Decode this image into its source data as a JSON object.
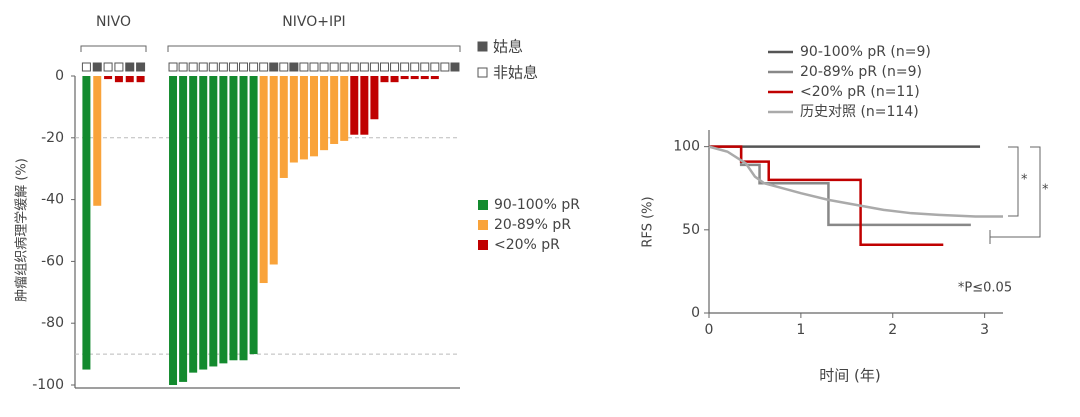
{
  "chart_data": [
    {
      "type": "waterfall",
      "y_label": "肿瘤组织病理学缓解 (%)",
      "ylim": [
        0,
        -100
      ],
      "yticks": [
        0,
        -20,
        -40,
        -60,
        -80,
        -100
      ],
      "ref_lines": [
        -20,
        -90
      ],
      "groups": [
        {
          "name": "NIVO",
          "values": [
            -95,
            -42,
            -1,
            -2,
            -2,
            -2
          ],
          "colors": [
            "#138a2e",
            "#f9a33a",
            "#c00000",
            "#c00000",
            "#c00000",
            "#c00000"
          ],
          "palliative": [
            false,
            true,
            false,
            false,
            true,
            true
          ]
        },
        {
          "name": "NIVO+IPI",
          "values": [
            -100,
            -99,
            -96,
            -95,
            -94,
            -93,
            -92,
            -92,
            -90,
            -67,
            -61,
            -33,
            -28,
            -27,
            -26,
            -24,
            -22,
            -21,
            -19,
            -19,
            -14,
            -2,
            -2,
            -1,
            -1,
            -1,
            -1,
            0,
            0
          ],
          "colors": [
            "#138a2e",
            "#138a2e",
            "#138a2e",
            "#138a2e",
            "#138a2e",
            "#138a2e",
            "#138a2e",
            "#138a2e",
            "#138a2e",
            "#f9a33a",
            "#f9a33a",
            "#f9a33a",
            "#f9a33a",
            "#f9a33a",
            "#f9a33a",
            "#f9a33a",
            "#f9a33a",
            "#f9a33a",
            "#c00000",
            "#c00000",
            "#c00000",
            "#c00000",
            "#c00000",
            "#c00000",
            "#c00000",
            "#c00000",
            "#c00000",
            "#c00000",
            "#c00000"
          ],
          "palliative": [
            false,
            false,
            false,
            false,
            false,
            false,
            false,
            false,
            false,
            false,
            true,
            false,
            true,
            false,
            false,
            false,
            false,
            false,
            false,
            false,
            false,
            false,
            false,
            false,
            false,
            false,
            false,
            false,
            true
          ]
        }
      ],
      "legend": [
        {
          "name": "90-100% pR",
          "color": "#138a2e"
        },
        {
          "name": "20-89% pR",
          "color": "#f9a33a"
        },
        {
          "name": "<20% pR",
          "color": "#c00000"
        }
      ],
      "status_legend": [
        {
          "label": "姑息",
          "filled": true
        },
        {
          "label": "非姑息",
          "filled": false
        }
      ]
    },
    {
      "type": "line",
      "x_label": "时间 (年)",
      "y_label": "RFS (%)",
      "xlim": [
        0,
        3.2
      ],
      "xticks": [
        0,
        1,
        2,
        3
      ],
      "ylim": [
        0,
        110
      ],
      "yticks": [
        0,
        50,
        100
      ],
      "series": [
        {
          "name": "90-100% pR (n=9)",
          "color": "#555555",
          "x": [
            0,
            2.95
          ],
          "values": [
            100,
            100
          ]
        },
        {
          "name": "20-89% pR (n=9)",
          "color": "#888888",
          "x": [
            0,
            0.35,
            0.35,
            0.55,
            0.55,
            1.3,
            1.3,
            2.85
          ],
          "values": [
            100,
            100,
            89,
            89,
            78,
            78,
            53,
            53
          ]
        },
        {
          "name": "<20% pR (n=11)",
          "color": "#c00000",
          "x": [
            0,
            0.35,
            0.35,
            0.65,
            0.65,
            1.65,
            1.65,
            2.55
          ],
          "values": [
            100,
            100,
            91,
            91,
            80,
            80,
            41,
            41
          ]
        },
        {
          "name": "历史对照 (n=114)",
          "color": "#aaaaaa",
          "x": [
            0,
            0.2,
            0.4,
            0.5,
            0.6,
            0.8,
            1,
            1.3,
            1.6,
            1.9,
            2.2,
            2.5,
            2.9,
            3.2
          ],
          "values": [
            100,
            97,
            90,
            82,
            78,
            75,
            72,
            68,
            65,
            62,
            60,
            59,
            58,
            58
          ]
        }
      ],
      "annotations": [
        "*P≤0.05",
        "*",
        "*"
      ]
    }
  ]
}
